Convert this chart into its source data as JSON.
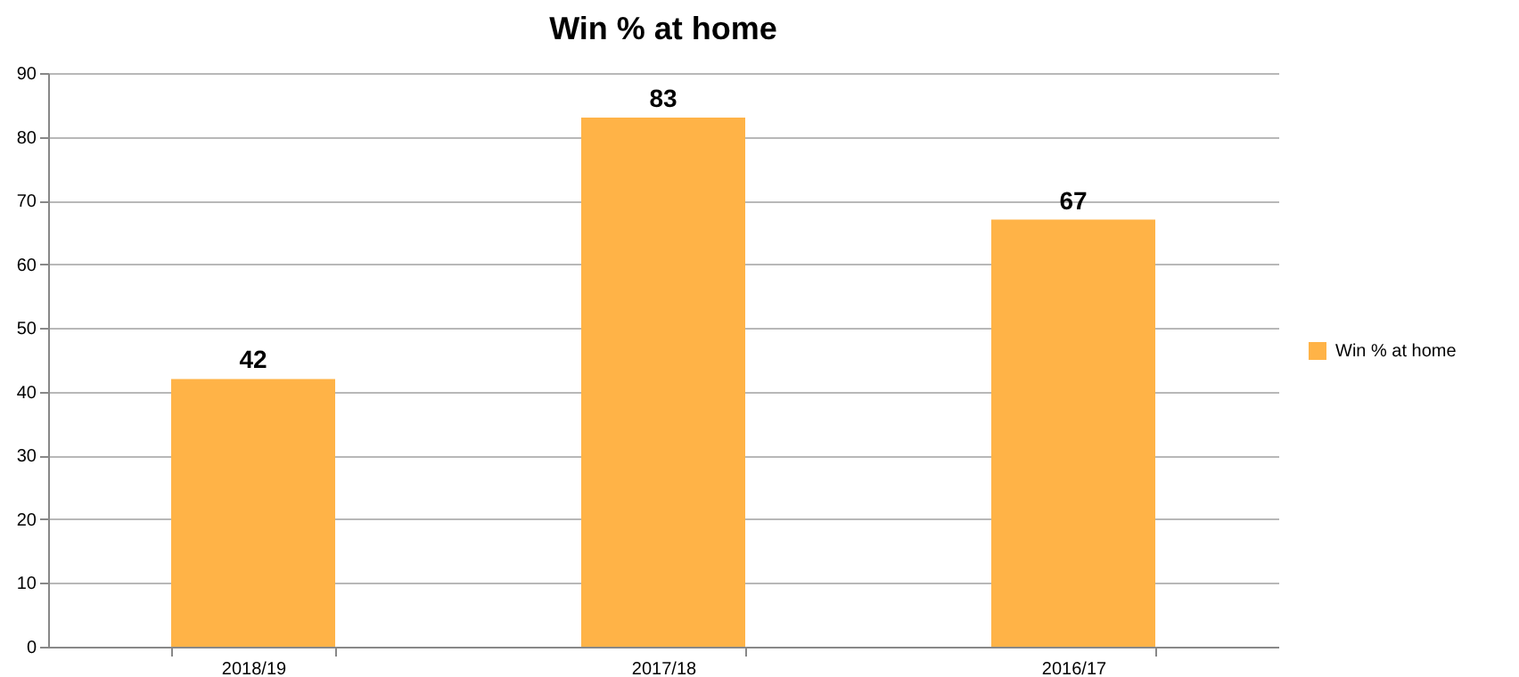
{
  "chart_data": {
    "type": "bar",
    "title": "Win % at home",
    "categories": [
      "2018/19",
      "2017/18",
      "2016/17"
    ],
    "series": [
      {
        "name": "Win % at home",
        "color": "#ffb347",
        "values": [
          42,
          83,
          67
        ]
      }
    ],
    "ylim": [
      0,
      90
    ],
    "yticks": [
      0,
      10,
      20,
      30,
      40,
      50,
      60,
      70,
      80,
      90
    ],
    "grid": "y",
    "legend": "right",
    "data_labels": true
  }
}
